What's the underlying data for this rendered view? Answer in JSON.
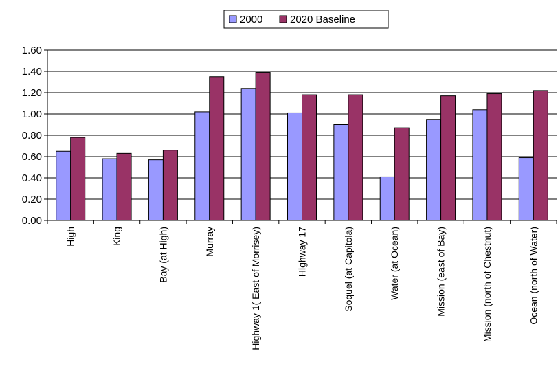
{
  "chart_data": {
    "type": "bar",
    "title": "",
    "xlabel": "",
    "ylabel": "",
    "categories": [
      "High",
      "King",
      "Bay (at High)",
      "Murray",
      "Highway 1( East of Morrisey)",
      "Highway 17",
      "Soquel (at Capitola)",
      "Water (at Ocean)",
      "Mission (east of Bay)",
      "Mission (north of Chestnut)",
      "Ocean (north of Water)"
    ],
    "series": [
      {
        "name": "2000",
        "values": [
          0.65,
          0.58,
          0.57,
          1.02,
          1.24,
          1.01,
          0.9,
          0.41,
          0.95,
          1.04,
          0.59
        ]
      },
      {
        "name": "2020 Baseline",
        "values": [
          0.78,
          0.63,
          0.66,
          1.35,
          1.39,
          1.18,
          1.18,
          0.87,
          1.17,
          1.19,
          1.22
        ]
      }
    ],
    "ylim": [
      0,
      1.6
    ],
    "yticks": [
      "0.00",
      "0.20",
      "0.40",
      "0.60",
      "0.80",
      "1.00",
      "1.20",
      "1.40",
      "1.60"
    ],
    "grid": true,
    "legend_position": "top",
    "colors": {
      "2000": "#9999ff",
      "2020 Baseline": "#993366"
    }
  }
}
